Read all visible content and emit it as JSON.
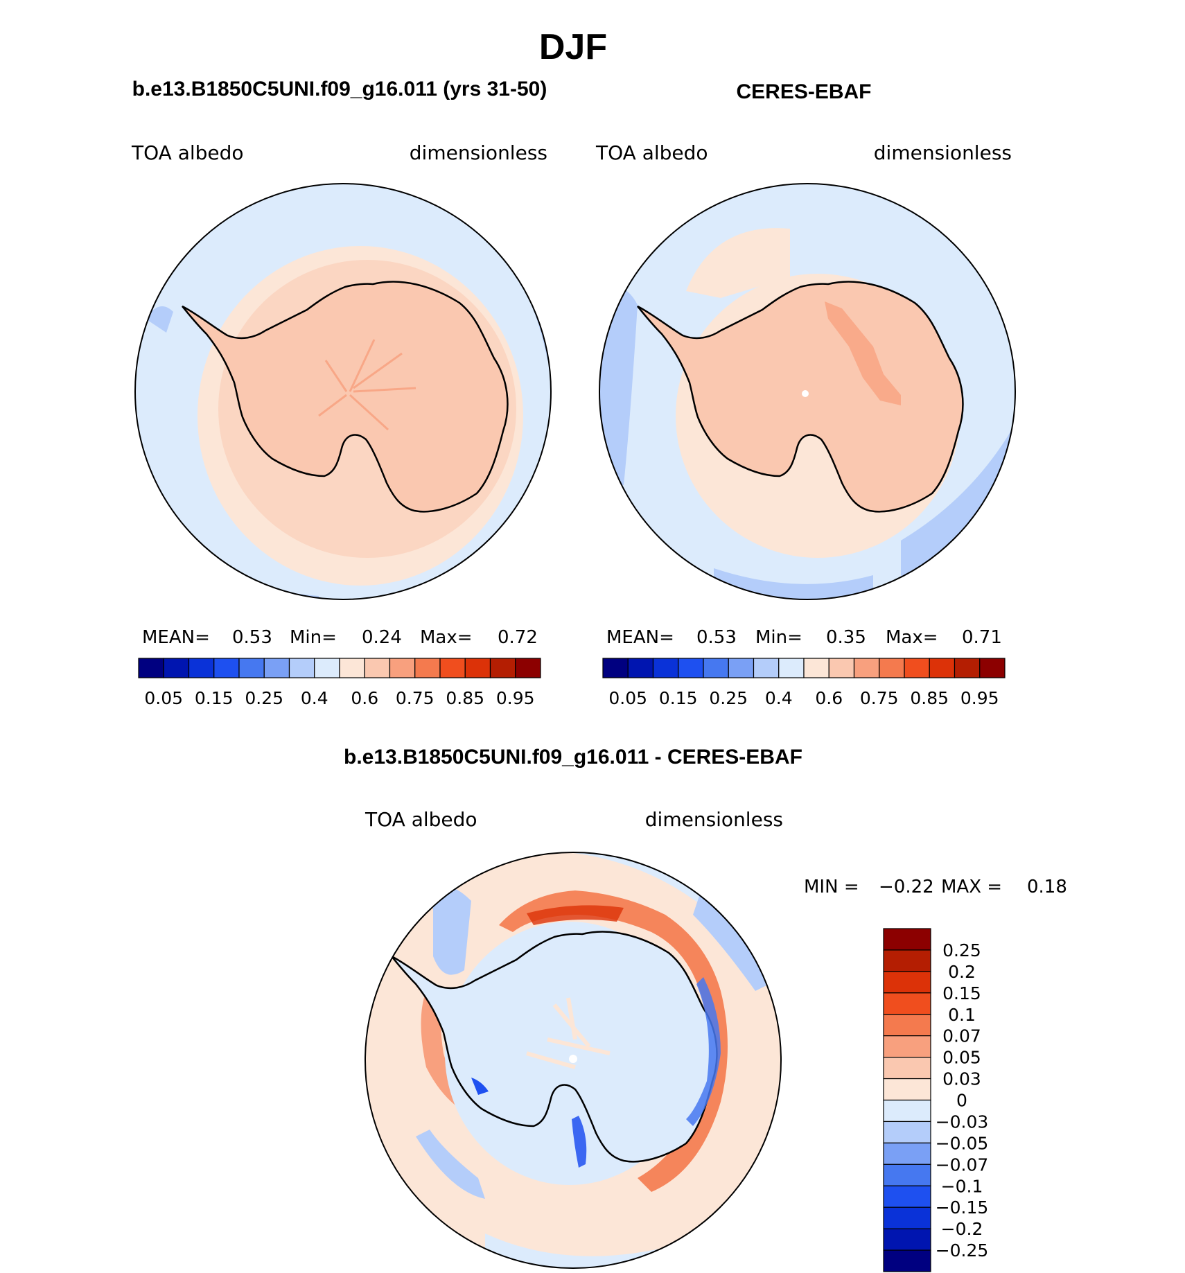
{
  "title": "DJF",
  "panels": [
    {
      "subtitle": "b.e13.B1850C5UNI.f09_g16.011 (yrs 31-50)",
      "variable": "TOA  albedo",
      "units": "dimensionless",
      "stats": {
        "mean_label": "MEAN=",
        "mean": "0.53",
        "min_label": "Min=",
        "min": "0.24",
        "max_label": "Max=",
        "max": "0.72"
      },
      "variant": "model"
    },
    {
      "subtitle": "CERES-EBAF",
      "variable": "TOA  albedo",
      "units": "dimensionless",
      "stats": {
        "mean_label": "MEAN=",
        "mean": "0.53",
        "min_label": "Min=",
        "min": "0.35",
        "max_label": "Max=",
        "max": "0.71"
      },
      "variant": "obs"
    }
  ],
  "colorbar_abs": {
    "colors": [
      "#000080",
      "#0015B0",
      "#0A32D8",
      "#1E50F0",
      "#4678F0",
      "#7AA0F5",
      "#B4CDFA",
      "#DCEBFC",
      "#FCE6D7",
      "#FAC8B0",
      "#F8A07E",
      "#F47A4E",
      "#F04E1E",
      "#DC3208",
      "#B41E02",
      "#8C0000"
    ],
    "labels": [
      "0.05",
      "0.15",
      "0.25",
      "0.4",
      "0.6",
      "0.75",
      "0.85",
      "0.95"
    ]
  },
  "diff": {
    "subtitle": "b.e13.B1850C5UNI.f09_g16.011 - CERES-EBAF",
    "variable": "TOA  albedo",
    "units": "dimensionless",
    "min_label": "MIN =",
    "min": "−0.22",
    "max_label": "MAX =",
    "max": "0.18",
    "colorbar": {
      "colors": [
        "#8C0000",
        "#B41E02",
        "#DC3208",
        "#F04E1E",
        "#F47A4E",
        "#F8A07E",
        "#FAC8B0",
        "#FCE6D7",
        "#DCEBFC",
        "#B4CDFA",
        "#7AA0F5",
        "#4678F0",
        "#1E50F0",
        "#0A32D8",
        "#0015B0",
        "#000080"
      ],
      "labels": [
        "0.25",
        "0.2",
        "0.15",
        "0.1",
        "0.07",
        "0.05",
        "0.03",
        "0",
        "−0.03",
        "−0.05",
        "−0.07",
        "−0.1",
        "−0.15",
        "−0.2",
        "−0.25"
      ]
    }
  }
}
